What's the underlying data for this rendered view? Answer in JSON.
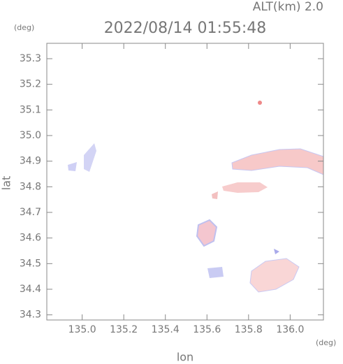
{
  "chart_data": {
    "type": "map",
    "title": "2022/08/14 01:55:48",
    "subtitle": "ALT(km) 2.0",
    "x_label": "lon",
    "y_label": "lat",
    "x_unit": "(deg)",
    "y_unit": "(deg)",
    "xlim": [
      134.83,
      136.16
    ],
    "ylim": [
      34.28,
      35.36
    ],
    "xticks": [
      {
        "value": 135,
        "label": "135.0"
      },
      135.2,
      135.4,
      135.6,
      135.8,
      {
        "value": 136,
        "label": "136.0"
      }
    ],
    "yticks": [
      34.3,
      34.4,
      34.5,
      34.6,
      34.7,
      34.8,
      34.9,
      {
        "value": 35,
        "label": "35.0"
      },
      35.1,
      35.2,
      35.3
    ]
  }
}
